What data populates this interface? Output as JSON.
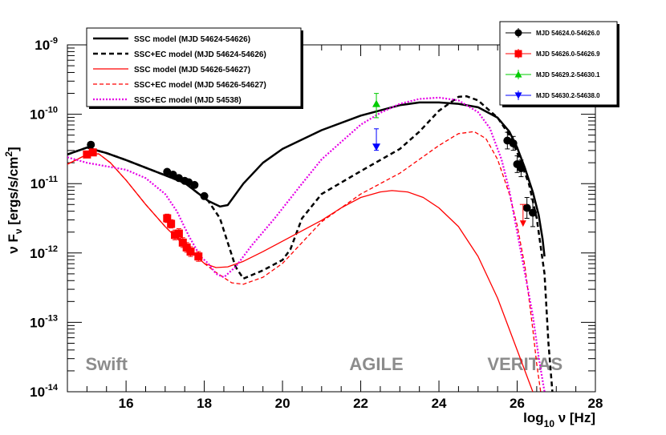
{
  "chart_data": {
    "type": "line",
    "title": "",
    "xlabel": {
      "prefix": "log",
      "sub": "10",
      "suffix": " ν [Hz]"
    },
    "ylabel": {
      "prefix": "ν F",
      "sub": "ν",
      "mid": " [ergs/s/cm",
      "sup": "2",
      "end": "]"
    },
    "xlim": [
      14.5,
      28
    ],
    "ylim_log10": [
      -14,
      -9
    ],
    "x_ticks": [
      {
        "value": 16,
        "label": "16"
      },
      {
        "value": 18,
        "label": "18"
      },
      {
        "value": 20,
        "label": "20"
      },
      {
        "value": 22,
        "label": "22"
      },
      {
        "value": 24,
        "label": "24"
      },
      {
        "value": 26,
        "label": "26"
      },
      {
        "value": 28,
        "label": "28"
      }
    ],
    "y_ticks": [
      {
        "exp": -14,
        "base": "10",
        "power": "-14"
      },
      {
        "exp": -13,
        "base": "10",
        "power": "-13"
      },
      {
        "exp": -12,
        "base": "10",
        "power": "-12"
      },
      {
        "exp": -11,
        "base": "10",
        "power": "-11"
      },
      {
        "exp": -10,
        "base": "10",
        "power": "-10"
      },
      {
        "exp": -9,
        "base": "10",
        "power": "-9"
      }
    ],
    "instrument_labels": [
      {
        "text": "Swift",
        "x": 15.5
      },
      {
        "text": "AGILE",
        "x": 22.4
      },
      {
        "text": "VERITAS",
        "x": 26.2
      }
    ],
    "legend_models_position": "top-left",
    "legend_data_position": "top-right",
    "models": [
      {
        "name": "SSC model (MJD 54624-54626)",
        "color": "#000000",
        "dash": "solid",
        "width": 2.5,
        "points": [
          [
            14.5,
            -10.58
          ],
          [
            15.0,
            -10.48
          ],
          [
            15.5,
            -10.56
          ],
          [
            16.0,
            -10.66
          ],
          [
            16.5,
            -10.77
          ],
          [
            17.0,
            -10.88
          ],
          [
            17.5,
            -10.99
          ],
          [
            17.8,
            -11.12
          ],
          [
            18.1,
            -11.25
          ],
          [
            18.4,
            -11.33
          ],
          [
            18.6,
            -11.31
          ],
          [
            19.0,
            -11.0
          ],
          [
            19.5,
            -10.7
          ],
          [
            20.0,
            -10.5
          ],
          [
            21.0,
            -10.23
          ],
          [
            22.0,
            -10.02
          ],
          [
            23.0,
            -9.87
          ],
          [
            23.5,
            -9.83
          ],
          [
            24.0,
            -9.83
          ],
          [
            24.5,
            -9.85
          ],
          [
            25.0,
            -9.9
          ],
          [
            25.5,
            -10.05
          ],
          [
            25.8,
            -10.25
          ],
          [
            26.0,
            -10.48
          ],
          [
            26.2,
            -10.78
          ],
          [
            26.4,
            -11.12
          ],
          [
            26.55,
            -11.45
          ],
          [
            26.65,
            -11.8
          ],
          [
            26.7,
            -12.05
          ]
        ]
      },
      {
        "name": "SSC+EC model (MJD 54624-54626)",
        "color": "#000000",
        "dash": "6,4",
        "width": 2.5,
        "points": [
          [
            14.5,
            -10.58
          ],
          [
            15.0,
            -10.48
          ],
          [
            15.5,
            -10.56
          ],
          [
            16.0,
            -10.66
          ],
          [
            16.5,
            -10.77
          ],
          [
            17.0,
            -10.88
          ],
          [
            17.5,
            -10.99
          ],
          [
            17.8,
            -11.12
          ],
          [
            18.1,
            -11.25
          ],
          [
            18.4,
            -11.5
          ],
          [
            18.6,
            -11.85
          ],
          [
            18.8,
            -12.2
          ],
          [
            19.0,
            -12.37
          ],
          [
            19.5,
            -12.25
          ],
          [
            20.0,
            -12.1
          ],
          [
            20.2,
            -11.95
          ],
          [
            20.5,
            -11.5
          ],
          [
            21.0,
            -11.15
          ],
          [
            22.0,
            -10.82
          ],
          [
            23.0,
            -10.5
          ],
          [
            23.5,
            -10.25
          ],
          [
            24.0,
            -9.95
          ],
          [
            24.5,
            -9.75
          ],
          [
            24.7,
            -9.74
          ],
          [
            25.0,
            -9.8
          ],
          [
            25.5,
            -10.05
          ],
          [
            25.8,
            -10.3
          ],
          [
            26.0,
            -10.55
          ],
          [
            26.3,
            -11.0
          ],
          [
            26.5,
            -11.5
          ],
          [
            26.7,
            -12.3
          ],
          [
            26.8,
            -13.3
          ],
          [
            26.9,
            -14.0
          ]
        ]
      },
      {
        "name": "SSC model (MJD 54626-54627)",
        "color": "#ff0000",
        "dash": "solid",
        "width": 1.3,
        "points": [
          [
            14.5,
            -10.72
          ],
          [
            15.0,
            -10.58
          ],
          [
            15.3,
            -10.57
          ],
          [
            15.6,
            -10.7
          ],
          [
            16.0,
            -10.95
          ],
          [
            16.5,
            -11.3
          ],
          [
            17.0,
            -11.62
          ],
          [
            17.5,
            -11.9
          ],
          [
            17.8,
            -12.05
          ],
          [
            18.0,
            -12.15
          ],
          [
            18.3,
            -12.21
          ],
          [
            18.6,
            -12.2
          ],
          [
            19.0,
            -12.12
          ],
          [
            19.5,
            -11.98
          ],
          [
            20.0,
            -11.83
          ],
          [
            20.5,
            -11.68
          ],
          [
            21.0,
            -11.53
          ],
          [
            21.5,
            -11.35
          ],
          [
            22.0,
            -11.2
          ],
          [
            22.5,
            -11.12
          ],
          [
            22.8,
            -11.1
          ],
          [
            23.2,
            -11.12
          ],
          [
            23.6,
            -11.2
          ],
          [
            24.0,
            -11.35
          ],
          [
            24.5,
            -11.62
          ],
          [
            25.0,
            -12.05
          ],
          [
            25.5,
            -12.65
          ],
          [
            26.0,
            -13.4
          ],
          [
            26.3,
            -13.85
          ],
          [
            26.4,
            -14.0
          ]
        ]
      },
      {
        "name": "SSC+EC model (MJD 54626-54627)",
        "color": "#ff0000",
        "dash": "5,3",
        "width": 1.3,
        "points": [
          [
            14.5,
            -10.72
          ],
          [
            15.0,
            -10.58
          ],
          [
            15.3,
            -10.57
          ],
          [
            15.6,
            -10.7
          ],
          [
            16.0,
            -10.95
          ],
          [
            16.5,
            -11.3
          ],
          [
            17.0,
            -11.62
          ],
          [
            17.5,
            -11.9
          ],
          [
            17.8,
            -12.05
          ],
          [
            18.0,
            -12.15
          ],
          [
            18.3,
            -12.28
          ],
          [
            18.7,
            -12.43
          ],
          [
            19.0,
            -12.45
          ],
          [
            19.5,
            -12.35
          ],
          [
            20.0,
            -12.15
          ],
          [
            20.5,
            -11.85
          ],
          [
            21.0,
            -11.55
          ],
          [
            22.0,
            -11.15
          ],
          [
            23.0,
            -10.85
          ],
          [
            23.5,
            -10.65
          ],
          [
            24.0,
            -10.45
          ],
          [
            24.5,
            -10.28
          ],
          [
            24.9,
            -10.25
          ],
          [
            25.2,
            -10.35
          ],
          [
            25.5,
            -10.65
          ],
          [
            25.8,
            -11.15
          ],
          [
            26.0,
            -11.6
          ],
          [
            26.2,
            -12.2
          ],
          [
            26.4,
            -13.1
          ],
          [
            26.5,
            -13.6
          ],
          [
            26.6,
            -14.0
          ]
        ]
      },
      {
        "name": "SSC+EC model (MJD 54538)",
        "color": "#e600e6",
        "dash": "2,2",
        "width": 2.2,
        "points": [
          [
            14.5,
            -10.62
          ],
          [
            15.0,
            -10.7
          ],
          [
            15.5,
            -10.75
          ],
          [
            16.0,
            -10.8
          ],
          [
            16.5,
            -10.92
          ],
          [
            17.0,
            -11.15
          ],
          [
            17.3,
            -11.4
          ],
          [
            17.6,
            -11.75
          ],
          [
            17.9,
            -12.05
          ],
          [
            18.1,
            -12.15
          ],
          [
            18.3,
            -12.3
          ],
          [
            18.5,
            -12.35
          ],
          [
            18.8,
            -12.2
          ],
          [
            19.2,
            -11.9
          ],
          [
            19.8,
            -11.5
          ],
          [
            20.5,
            -11.0
          ],
          [
            21.0,
            -10.65
          ],
          [
            21.5,
            -10.4
          ],
          [
            22.0,
            -10.15
          ],
          [
            22.5,
            -9.98
          ],
          [
            23.0,
            -9.85
          ],
          [
            23.5,
            -9.78
          ],
          [
            24.0,
            -9.76
          ],
          [
            24.5,
            -9.8
          ],
          [
            25.0,
            -9.97
          ],
          [
            25.3,
            -10.2
          ],
          [
            25.6,
            -10.65
          ],
          [
            25.8,
            -11.1
          ],
          [
            26.0,
            -11.7
          ],
          [
            26.2,
            -12.3
          ],
          [
            26.4,
            -12.9
          ],
          [
            26.55,
            -13.5
          ],
          [
            26.7,
            -14.0
          ]
        ]
      }
    ],
    "observations": [
      {
        "name": "MJD 54624.0-54626.0",
        "color": "#000000",
        "marker": "circle",
        "points": [
          [
            15.1,
            -10.44,
            0,
            0
          ],
          [
            17.05,
            -10.83,
            0,
            0
          ],
          [
            17.2,
            -10.87,
            0,
            0
          ],
          [
            17.35,
            -10.92,
            0,
            0
          ],
          [
            17.5,
            -10.96,
            0,
            0
          ],
          [
            17.6,
            -10.98,
            0,
            0
          ],
          [
            17.75,
            -11.02,
            0,
            0
          ],
          [
            18.0,
            -11.18,
            0,
            0
          ],
          [
            25.75,
            -10.38,
            0.12,
            0.12
          ],
          [
            25.9,
            -10.42,
            0.1,
            0.1
          ],
          [
            26.0,
            -10.72,
            0.12,
            0.12
          ],
          [
            26.1,
            -10.78,
            0.12,
            0.12
          ],
          [
            26.25,
            -11.35,
            0.15,
            0.15
          ],
          [
            26.4,
            -11.42,
            0.2,
            0.2
          ]
        ]
      },
      {
        "name": "MJD 54626.0-54626.9",
        "color": "#ff0000",
        "marker": "square",
        "points": [
          [
            15.0,
            -10.58,
            0,
            0
          ],
          [
            15.15,
            -10.55,
            0,
            0
          ],
          [
            17.05,
            -11.5,
            0.06,
            0.06
          ],
          [
            17.15,
            -11.58,
            0.06,
            0.06
          ],
          [
            17.25,
            -11.74,
            0.07,
            0.07
          ],
          [
            17.35,
            -11.72,
            0.07,
            0.07
          ],
          [
            17.45,
            -11.85,
            0.07,
            0.07
          ],
          [
            17.55,
            -11.92,
            0.07,
            0.07
          ],
          [
            17.65,
            -11.98,
            0.07,
            0.07
          ],
          [
            17.85,
            -12.05,
            0.07,
            0.07
          ]
        ],
        "upper_limits": [
          [
            26.15,
            -11.3
          ]
        ]
      },
      {
        "name": "MJD 54629.2-54630.1",
        "color": "#00cc00",
        "marker": "triangle-up",
        "points": [
          [
            22.4,
            -9.85,
            0.15,
            0.2
          ]
        ]
      },
      {
        "name": "MJD 54630.2-54638.0",
        "color": "#0000ff",
        "marker": "triangle-down",
        "points": [
          [
            22.4,
            -10.47,
            0.26,
            0.05
          ]
        ]
      }
    ]
  }
}
